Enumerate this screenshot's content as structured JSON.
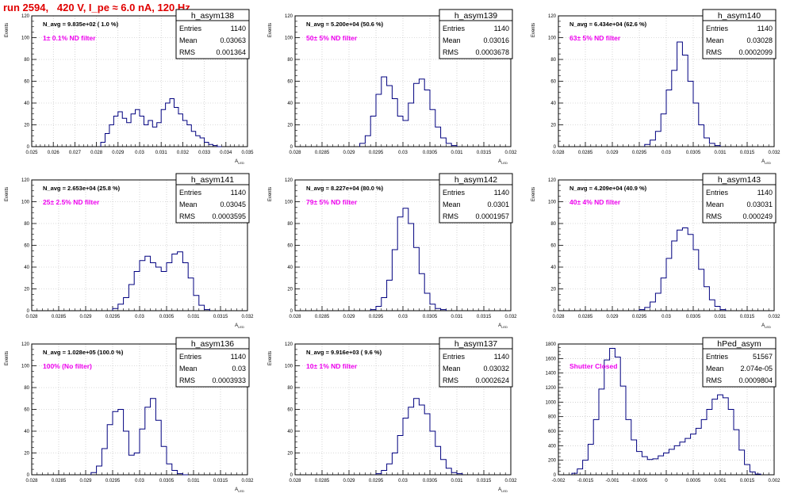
{
  "page": {
    "title": "run 2594,   420 V, I_pe ≈ 6.0 nA, 120 Hz"
  },
  "chart_data": [
    {
      "type": "histogram",
      "name": "h_asym138",
      "navg": "N_avg = 9.835e+02 ( 1.0 %)",
      "filter": "1± 0.1% ND filter",
      "entries": "1140",
      "mean": "0.03063",
      "rms": "0.001364",
      "xlim": [
        0.025,
        0.035
      ],
      "xticks": [
        "0.025",
        "0.026",
        "0.027",
        "0.028",
        "0.029",
        "0.03",
        "0.031",
        "0.032",
        "0.033",
        "0.034",
        "0.035"
      ],
      "ylim": [
        0,
        120
      ],
      "yticks": [
        "0",
        "20",
        "40",
        "60",
        "80",
        "100",
        "120"
      ],
      "ylabel": "Events",
      "xlabel": "A_LED",
      "x": [
        0.0283,
        0.0285,
        0.0287,
        0.0289,
        0.0291,
        0.0293,
        0.0295,
        0.0297,
        0.0299,
        0.0301,
        0.0303,
        0.0305,
        0.0307,
        0.0309,
        0.0311,
        0.0313,
        0.0315,
        0.0317,
        0.0319,
        0.0321,
        0.0323,
        0.0325,
        0.0327,
        0.0329,
        0.0331,
        0.0333,
        0.0335,
        0.0337
      ],
      "values": [
        4,
        12,
        20,
        28,
        32,
        26,
        22,
        30,
        34,
        28,
        20,
        24,
        18,
        22,
        34,
        40,
        44,
        36,
        30,
        24,
        20,
        14,
        10,
        8,
        4,
        2,
        1,
        0
      ]
    },
    {
      "type": "histogram",
      "name": "h_asym139",
      "navg": "N_avg = 5.200e+04 (50.6 %)",
      "filter": "50± 5% ND filter",
      "entries": "1140",
      "mean": "0.03016",
      "rms": "0.0003678",
      "xlim": [
        0.028,
        0.032
      ],
      "xticks": [
        "0.028",
        "0.0285",
        "0.029",
        "0.0295",
        "0.03",
        "0.0305",
        "0.031",
        "0.0315",
        "0.032"
      ],
      "ylim": [
        0,
        120
      ],
      "yticks": [
        "0",
        "20",
        "40",
        "60",
        "80",
        "100",
        "120"
      ],
      "ylabel": "Events",
      "xlabel": "A_LED",
      "x": [
        0.02925,
        0.02935,
        0.02945,
        0.02955,
        0.02965,
        0.02975,
        0.02985,
        0.02995,
        0.03005,
        0.03015,
        0.03025,
        0.03035,
        0.03045,
        0.03055,
        0.03065,
        0.03075,
        0.03085,
        0.03095
      ],
      "values": [
        3,
        10,
        28,
        48,
        64,
        56,
        44,
        28,
        24,
        40,
        58,
        62,
        52,
        34,
        18,
        8,
        3,
        1
      ]
    },
    {
      "type": "histogram",
      "name": "h_asym140",
      "navg": "N_avg = 6.434e+04 (62.6 %)",
      "filter": "63± 5% ND filter",
      "entries": "1140",
      "mean": "0.03028",
      "rms": "0.0002099",
      "xlim": [
        0.028,
        0.032
      ],
      "xticks": [
        "0.028",
        "0.0285",
        "0.029",
        "0.0295",
        "0.03",
        "0.0305",
        "0.031",
        "0.0315",
        "0.032"
      ],
      "ylim": [
        0,
        120
      ],
      "yticks": [
        "0",
        "20",
        "40",
        "60",
        "80",
        "100",
        "120"
      ],
      "ylabel": "Events",
      "xlabel": "A_LED",
      "x": [
        0.02965,
        0.02975,
        0.02985,
        0.02995,
        0.03005,
        0.03015,
        0.03025,
        0.03035,
        0.03045,
        0.03055,
        0.03065,
        0.03075,
        0.03085,
        0.03095
      ],
      "values": [
        2,
        6,
        14,
        30,
        52,
        70,
        96,
        84,
        60,
        40,
        20,
        8,
        3,
        1
      ]
    },
    {
      "type": "histogram",
      "name": "h_asym141",
      "navg": "N_avg = 2.653e+04 (25.8 %)",
      "filter": "25± 2.5% ND filter",
      "entries": "1140",
      "mean": "0.03045",
      "rms": "0.0003595",
      "xlim": [
        0.028,
        0.032
      ],
      "xticks": [
        "0.028",
        "0.0285",
        "0.029",
        "0.0295",
        "0.03",
        "0.0305",
        "0.031",
        "0.0315",
        "0.032"
      ],
      "ylim": [
        0,
        120
      ],
      "yticks": [
        "0",
        "20",
        "40",
        "60",
        "80",
        "100",
        "120"
      ],
      "ylabel": "Events",
      "xlabel": "A_LED",
      "x": [
        0.02955,
        0.02965,
        0.02975,
        0.02985,
        0.02995,
        0.03005,
        0.03015,
        0.03025,
        0.03035,
        0.03045,
        0.03055,
        0.03065,
        0.03075,
        0.03085,
        0.03095,
        0.03105,
        0.03115,
        0.03125
      ],
      "values": [
        2,
        6,
        12,
        24,
        36,
        46,
        50,
        44,
        40,
        36,
        44,
        52,
        54,
        44,
        30,
        14,
        5,
        1
      ]
    },
    {
      "type": "histogram",
      "name": "h_asym142",
      "navg": "N_avg = 8.227e+04 (80.0 %)",
      "filter": "79± 5% ND filter",
      "entries": "1140",
      "mean": "0.0301",
      "rms": "0.0001957",
      "xlim": [
        0.028,
        0.032
      ],
      "xticks": [
        "0.028",
        "0.0285",
        "0.029",
        "0.0295",
        "0.03",
        "0.0305",
        "0.031",
        "0.0315",
        "0.032"
      ],
      "ylim": [
        0,
        120
      ],
      "yticks": [
        "0",
        "20",
        "40",
        "60",
        "80",
        "100",
        "120"
      ],
      "ylabel": "Events",
      "xlabel": "A_LED",
      "x": [
        0.02945,
        0.02955,
        0.02965,
        0.02975,
        0.02985,
        0.02995,
        0.03005,
        0.03015,
        0.03025,
        0.03035,
        0.03045,
        0.03055,
        0.03065,
        0.03075
      ],
      "values": [
        1,
        4,
        12,
        28,
        56,
        86,
        94,
        80,
        58,
        34,
        16,
        6,
        2,
        1
      ]
    },
    {
      "type": "histogram",
      "name": "h_asym143",
      "navg": "N_avg = 4.209e+04 (40.9 %)",
      "filter": "40± 4% ND filter",
      "entries": "1140",
      "mean": "0.03031",
      "rms": "0.000249",
      "xlim": [
        0.028,
        0.032
      ],
      "xticks": [
        "0.028",
        "0.0285",
        "0.029",
        "0.0295",
        "0.03",
        "0.0305",
        "0.031",
        "0.0315",
        "0.032"
      ],
      "ylim": [
        0,
        120
      ],
      "yticks": [
        "0",
        "20",
        "40",
        "60",
        "80",
        "100",
        "120"
      ],
      "ylabel": "Events",
      "xlabel": "A_LED",
      "x": [
        0.02955,
        0.02965,
        0.02975,
        0.02985,
        0.02995,
        0.03005,
        0.03015,
        0.03025,
        0.03035,
        0.03045,
        0.03055,
        0.03065,
        0.03075,
        0.03085,
        0.03095,
        0.03105
      ],
      "values": [
        1,
        3,
        8,
        16,
        30,
        48,
        64,
        74,
        76,
        70,
        56,
        38,
        22,
        10,
        4,
        1
      ]
    },
    {
      "type": "histogram",
      "name": "h_asym136",
      "navg": "N_avg = 1.028e+05 (100.0 %)",
      "filter": "100% (No filter)",
      "entries": "1140",
      "mean": "0.03",
      "rms": "0.0003933",
      "xlim": [
        0.028,
        0.032
      ],
      "xticks": [
        "0.028",
        "0.0285",
        "0.029",
        "0.0295",
        "0.03",
        "0.0305",
        "0.031",
        "0.0315",
        "0.032"
      ],
      "ylim": [
        0,
        120
      ],
      "yticks": [
        "0",
        "20",
        "40",
        "60",
        "80",
        "100",
        "120"
      ],
      "ylabel": "Events",
      "xlabel": "A_LED",
      "x": [
        0.02915,
        0.02925,
        0.02935,
        0.02945,
        0.02955,
        0.02965,
        0.02975,
        0.02985,
        0.02995,
        0.03005,
        0.03015,
        0.03025,
        0.03035,
        0.03045,
        0.03055,
        0.03065,
        0.03075,
        0.03085
      ],
      "values": [
        2,
        8,
        24,
        46,
        58,
        60,
        40,
        18,
        20,
        42,
        62,
        70,
        50,
        26,
        10,
        4,
        1,
        0
      ]
    },
    {
      "type": "histogram",
      "name": "h_asym137",
      "navg": "N_avg = 9.916e+03 ( 9.6 %)",
      "filter": "10± 1% ND filter",
      "entries": "1140",
      "mean": "0.03032",
      "rms": "0.0002624",
      "xlim": [
        0.028,
        0.032
      ],
      "xticks": [
        "0.028",
        "0.0285",
        "0.029",
        "0.0295",
        "0.03",
        "0.0305",
        "0.031",
        "0.0315",
        "0.032"
      ],
      "ylim": [
        0,
        120
      ],
      "yticks": [
        "0",
        "20",
        "40",
        "60",
        "80",
        "100",
        "120"
      ],
      "ylabel": "Events",
      "xlabel": "A_LED",
      "x": [
        0.02955,
        0.02965,
        0.02975,
        0.02985,
        0.02995,
        0.03005,
        0.03015,
        0.03025,
        0.03035,
        0.03045,
        0.03055,
        0.03065,
        0.03075,
        0.03085,
        0.03095,
        0.03105
      ],
      "values": [
        1,
        4,
        10,
        20,
        36,
        52,
        62,
        70,
        64,
        56,
        40,
        26,
        14,
        6,
        2,
        1
      ]
    },
    {
      "type": "histogram",
      "name": "hPed_asym",
      "navg": "",
      "filter": "Shutter Closed",
      "entries": "51567",
      "mean": "2.074e-05",
      "rms": "0.0009804",
      "xlim": [
        -0.002,
        0.002
      ],
      "xticks": [
        "-0.002",
        "-0.0015",
        "-0.001",
        "-0.0005",
        "0",
        "0.0005",
        "0.001",
        "0.0015",
        "0.002"
      ],
      "ylim": [
        0,
        1800
      ],
      "yticks": [
        "0",
        "200",
        "400",
        "600",
        "800",
        "1000",
        "1200",
        "1400",
        "1600",
        "1800"
      ],
      "ylabel": "",
      "xlabel": "",
      "x": [
        -0.0017,
        -0.0016,
        -0.0015,
        -0.0014,
        -0.0013,
        -0.0012,
        -0.0011,
        -0.001,
        -0.0009,
        -0.0008,
        -0.0007,
        -0.0006,
        -0.0005,
        -0.0004,
        -0.0003,
        -0.0002,
        -0.0001,
        0,
        0.0001,
        0.0002,
        0.0003,
        0.0004,
        0.0005,
        0.0006,
        0.0007,
        0.0008,
        0.0009,
        0.001,
        0.0011,
        0.0012,
        0.0013,
        0.0014,
        0.0015,
        0.0016,
        0.0017
      ],
      "values": [
        20,
        80,
        200,
        420,
        760,
        1180,
        1580,
        1740,
        1620,
        1220,
        760,
        480,
        320,
        250,
        210,
        220,
        260,
        300,
        350,
        400,
        450,
        500,
        560,
        640,
        760,
        900,
        1040,
        1100,
        1060,
        900,
        620,
        340,
        140,
        40,
        10
      ]
    }
  ]
}
